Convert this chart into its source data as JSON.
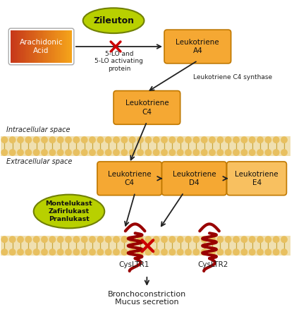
{
  "background_color": "#ffffff",
  "membrane_color": "#f0e0b0",
  "membrane_dot_color": "#e8c060",
  "membrane_dot_outline": "#d4a840",
  "box_fill": "#f5a833",
  "box_fill_lighter": "#f8c060",
  "box_stroke": "#c07800",
  "arachidonic_fill": "#d04020",
  "arachidonic_fill2": "#f5a833",
  "zileuton_fill": "#b8d000",
  "zileuton_stroke": "#708000",
  "montelukast_fill": "#b8d000",
  "montelukast_stroke": "#708000",
  "arrow_color": "#222222",
  "red_x_color": "#cc0000",
  "receptor_color": "#990000",
  "text_color": "#222222",
  "label_intracellular": "Intracellular space",
  "label_extracellular": "Extracellular space",
  "label_arachidonic": "Arachidonic\nAcid",
  "label_zileuton": "Zileuton",
  "label_5lo": "5-LO and\n5-LO activating\nprotein",
  "label_ltA4": "Leukotriene\nA4",
  "label_ltC4_enzyme": "Leukotriene C4 synthase",
  "label_ltC4_intra": "Leukotriene\nC4",
  "label_ltC4_extra": "Leukotriene\nC4",
  "label_ltD4": "Leukotriene\nD4",
  "label_ltE4": "Leukotriene\nE4",
  "label_montelukast": "Montelukast\nZafirlukast\nPranlukast",
  "label_cysLTR1": "CysLTR1",
  "label_cysLTR2": "CysLTR2",
  "label_outcome1": "Bronchoconstriction",
  "label_outcome2": "Mucus secretion"
}
